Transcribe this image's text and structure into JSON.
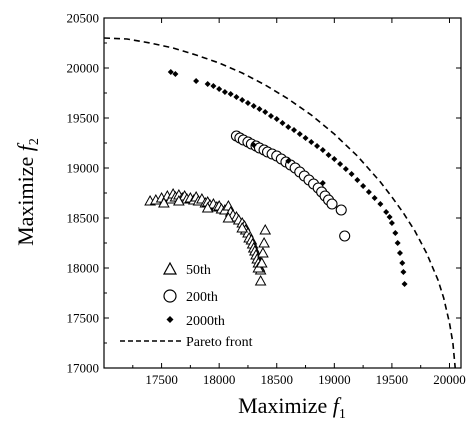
{
  "chart_data": {
    "type": "scatter",
    "title": "",
    "xlabel": "Maximize f1",
    "ylabel": "Maximize f2",
    "xlabel_text": "Maximize ",
    "xlabel_symbol": "f",
    "xlabel_sub": "1",
    "ylabel_text": "Maximize ",
    "ylabel_symbol": "f",
    "ylabel_sub": "2",
    "xlim": [
      17000,
      20100
    ],
    "ylim": [
      17000,
      20500
    ],
    "xticks": [
      17500,
      18000,
      18500,
      19000,
      19500,
      20000
    ],
    "yticks": [
      17000,
      17500,
      18000,
      18500,
      19000,
      19500,
      20000,
      20500
    ],
    "xtick_labels": [
      "17500",
      "18000",
      "18500",
      "19000",
      "19500",
      "20000"
    ],
    "ytick_labels": [
      "17000",
      "17500",
      "18000",
      "18500",
      "19000",
      "19500",
      "20000",
      "20500"
    ],
    "grid": false,
    "legend_position": "bottom-left",
    "series": [
      {
        "name": "50th",
        "marker": "triangle",
        "points": [
          [
            17400,
            18670
          ],
          [
            17450,
            18680
          ],
          [
            17500,
            18700
          ],
          [
            17550,
            18720
          ],
          [
            17580,
            18690
          ],
          [
            17600,
            18740
          ],
          [
            17620,
            18710
          ],
          [
            17650,
            18730
          ],
          [
            17680,
            18700
          ],
          [
            17700,
            18720
          ],
          [
            17720,
            18690
          ],
          [
            17750,
            18700
          ],
          [
            17780,
            18680
          ],
          [
            17800,
            18710
          ],
          [
            17820,
            18670
          ],
          [
            17850,
            18690
          ],
          [
            17880,
            18650
          ],
          [
            17900,
            18660
          ],
          [
            17920,
            18630
          ],
          [
            17950,
            18640
          ],
          [
            17980,
            18610
          ],
          [
            18000,
            18620
          ],
          [
            18020,
            18590
          ],
          [
            18050,
            18580
          ],
          [
            18080,
            18620
          ],
          [
            18100,
            18560
          ],
          [
            18120,
            18530
          ],
          [
            18150,
            18510
          ],
          [
            18170,
            18480
          ],
          [
            18200,
            18450
          ],
          [
            18220,
            18420
          ],
          [
            18230,
            18380
          ],
          [
            18250,
            18350
          ],
          [
            18260,
            18300
          ],
          [
            18280,
            18280
          ],
          [
            18290,
            18240
          ],
          [
            18300,
            18200
          ],
          [
            18310,
            18170
          ],
          [
            18320,
            18130
          ],
          [
            18330,
            18090
          ],
          [
            18340,
            18050
          ],
          [
            18350,
            18010
          ],
          [
            18360,
            17980
          ],
          [
            18340,
            18000
          ],
          [
            18370,
            18050
          ],
          [
            18380,
            18150
          ],
          [
            18390,
            18250
          ],
          [
            18400,
            18380
          ],
          [
            18360,
            17870
          ],
          [
            17520,
            18650
          ],
          [
            17650,
            18670
          ],
          [
            17900,
            18600
          ],
          [
            18080,
            18500
          ],
          [
            18200,
            18400
          ]
        ]
      },
      {
        "name": "200th",
        "marker": "circle",
        "points": [
          [
            18150,
            19320
          ],
          [
            18180,
            19300
          ],
          [
            18210,
            19280
          ],
          [
            18250,
            19260
          ],
          [
            18280,
            19240
          ],
          [
            18320,
            19220
          ],
          [
            18350,
            19200
          ],
          [
            18390,
            19180
          ],
          [
            18420,
            19160
          ],
          [
            18460,
            19140
          ],
          [
            18500,
            19120
          ],
          [
            18540,
            19090
          ],
          [
            18580,
            19060
          ],
          [
            18620,
            19030
          ],
          [
            18660,
            19000
          ],
          [
            18700,
            18960
          ],
          [
            18740,
            18920
          ],
          [
            18780,
            18880
          ],
          [
            18820,
            18840
          ],
          [
            18860,
            18800
          ],
          [
            18890,
            18760
          ],
          [
            18920,
            18720
          ],
          [
            18950,
            18680
          ],
          [
            18980,
            18640
          ],
          [
            19060,
            18580
          ],
          [
            19090,
            18320
          ]
        ]
      },
      {
        "name": "2000th",
        "marker": "dot",
        "points": [
          [
            17580,
            19960
          ],
          [
            17620,
            19940
          ],
          [
            17800,
            19870
          ],
          [
            17900,
            19840
          ],
          [
            17950,
            19820
          ],
          [
            18000,
            19790
          ],
          [
            18050,
            19760
          ],
          [
            18100,
            19740
          ],
          [
            18150,
            19710
          ],
          [
            18200,
            19680
          ],
          [
            18250,
            19650
          ],
          [
            18300,
            19620
          ],
          [
            18350,
            19590
          ],
          [
            18400,
            19560
          ],
          [
            18450,
            19520
          ],
          [
            18500,
            19490
          ],
          [
            18550,
            19450
          ],
          [
            18600,
            19410
          ],
          [
            18650,
            19380
          ],
          [
            18700,
            19340
          ],
          [
            18750,
            19300
          ],
          [
            18800,
            19260
          ],
          [
            18850,
            19220
          ],
          [
            18900,
            19180
          ],
          [
            18950,
            19130
          ],
          [
            19000,
            19090
          ],
          [
            19050,
            19040
          ],
          [
            19100,
            18990
          ],
          [
            19150,
            18940
          ],
          [
            19200,
            18880
          ],
          [
            19250,
            18820
          ],
          [
            19300,
            18760
          ],
          [
            19350,
            18700
          ],
          [
            19400,
            18640
          ],
          [
            19450,
            18560
          ],
          [
            19480,
            18510
          ],
          [
            19500,
            18450
          ],
          [
            19530,
            18350
          ],
          [
            19550,
            18250
          ],
          [
            19570,
            18150
          ],
          [
            19590,
            18050
          ],
          [
            19600,
            17960
          ],
          [
            19610,
            17840
          ],
          [
            18300,
            19230
          ],
          [
            18600,
            19070
          ],
          [
            18900,
            18850
          ]
        ]
      },
      {
        "name": "Pareto front",
        "marker": "dashed-line",
        "points": [
          [
            17000,
            20300
          ],
          [
            17200,
            20290
          ],
          [
            17400,
            20250
          ],
          [
            17600,
            20200
          ],
          [
            17800,
            20130
          ],
          [
            18000,
            20050
          ],
          [
            18200,
            19950
          ],
          [
            18400,
            19830
          ],
          [
            18600,
            19690
          ],
          [
            18800,
            19530
          ],
          [
            19000,
            19340
          ],
          [
            19200,
            19120
          ],
          [
            19400,
            18860
          ],
          [
            19500,
            18710
          ],
          [
            19600,
            18550
          ],
          [
            19700,
            18370
          ],
          [
            19800,
            18150
          ],
          [
            19900,
            17880
          ],
          [
            19950,
            17700
          ],
          [
            20000,
            17450
          ],
          [
            20030,
            17250
          ],
          [
            20050,
            17000
          ]
        ]
      }
    ]
  }
}
